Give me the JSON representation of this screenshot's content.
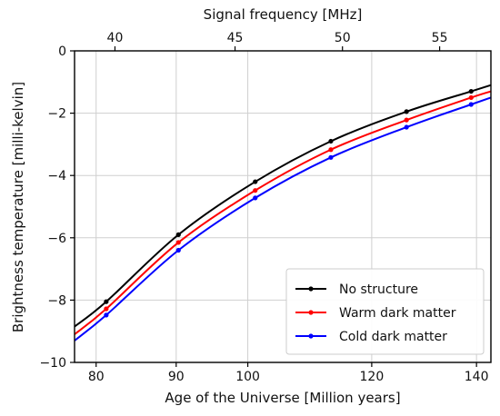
{
  "chart_data": {
    "type": "line",
    "title": "",
    "xlabel": "Age of the Universe [Million years]",
    "ylabel": "Brightness temperature [milli-kelvin]",
    "x2label": "Signal frequency [MHz]",
    "xlim": [
      77.5,
      143
    ],
    "ylim": [
      -10,
      0
    ],
    "x_scale": "log",
    "x_ticks": [
      80,
      90,
      100,
      120,
      140
    ],
    "x_tick_labels": [
      "80",
      "90",
      "100",
      "120",
      "140"
    ],
    "y_ticks": [
      0,
      -2,
      -4,
      -6,
      -8,
      -10
    ],
    "y_tick_labels": [
      "0",
      "−2",
      "−4",
      "−6",
      "−8",
      "−10"
    ],
    "x2_ticks": [
      40,
      45,
      50,
      55
    ],
    "x2_tick_labels": [
      "40",
      "45",
      "50",
      "55"
    ],
    "grid": true,
    "legend_position": "bottom-right",
    "series": [
      {
        "name": "No structure",
        "color": "#000000",
        "x": [
          77.5,
          81.2,
          90.3,
          101.1,
          113.0,
          126.3,
          138.9,
          143.0
        ],
        "y": [
          -8.85,
          -8.05,
          -5.9,
          -4.2,
          -2.9,
          -1.95,
          -1.3,
          -1.1
        ],
        "markers": [
          false,
          true,
          true,
          true,
          true,
          true,
          true,
          false
        ]
      },
      {
        "name": "Warm dark matter",
        "color": "#ff0000",
        "x": [
          77.5,
          81.2,
          90.3,
          101.1,
          113.0,
          126.3,
          138.9,
          143.0
        ],
        "y": [
          -9.1,
          -8.28,
          -6.15,
          -4.48,
          -3.17,
          -2.22,
          -1.5,
          -1.3
        ],
        "markers": [
          false,
          true,
          true,
          true,
          true,
          true,
          true,
          false
        ]
      },
      {
        "name": "Cold dark matter",
        "color": "#0000ff",
        "x": [
          77.5,
          81.2,
          90.3,
          101.1,
          113.0,
          126.3,
          138.9,
          143.0
        ],
        "y": [
          -9.3,
          -8.48,
          -6.4,
          -4.72,
          -3.42,
          -2.45,
          -1.72,
          -1.5
        ],
        "markers": [
          false,
          true,
          true,
          true,
          true,
          true,
          true,
          false
        ]
      }
    ]
  }
}
